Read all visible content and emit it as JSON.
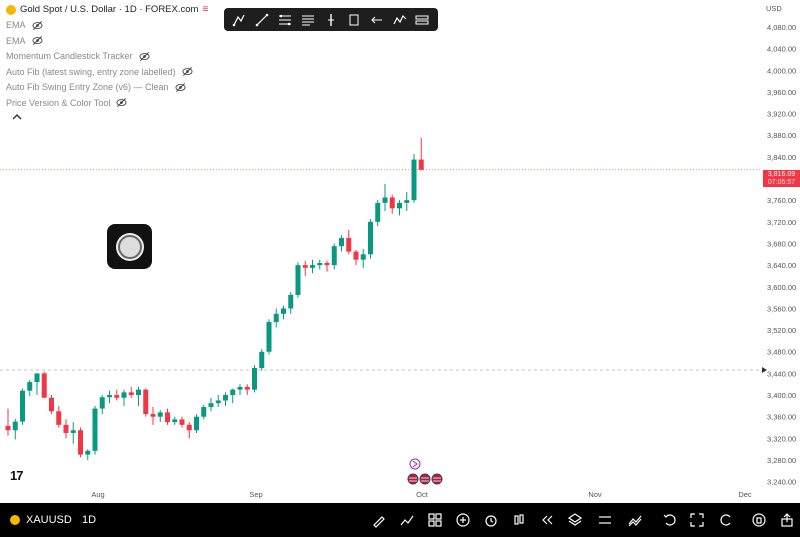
{
  "legend": {
    "title": "Gold Spot / U.S. Dollar · 1D · FOREX.com",
    "indicators": [
      "EMA",
      "EMA",
      "Momentum Candlestick Tracker",
      "Auto Fib (latest swing, entry zone labelled)",
      "Auto Fib Swing Entry Zone (v6) — Clean",
      "Price Version & Color Tool"
    ]
  },
  "currency": "USD",
  "price_tag": {
    "price": "3,816.09",
    "sub": "07:05:57"
  },
  "symbol": "XAUUSD",
  "timeframe": "1D",
  "logo_text": "17",
  "colors": {
    "up": "#089981",
    "down": "#f23645",
    "accent": "#e91e63"
  },
  "toolbar_icons": [
    "cursor-icon",
    "trendline-icon",
    "pitchfork-icon",
    "fib-icon",
    "long-position-icon",
    "measure-icon",
    "back-icon",
    "pattern-icon",
    "brush-icon"
  ],
  "bottom_icons": [
    "pencil-icon",
    "indicators-icon",
    "layout-icon",
    "add-icon",
    "alert-icon",
    "chart-type-icon",
    "replay-icon",
    "layers-icon",
    "settings-icon",
    "compare-icon",
    "undo-icon",
    "fullscreen-icon",
    "redo-icon",
    "lock-icon",
    "share-icon"
  ],
  "chart_data": {
    "type": "candlestick",
    "symbol": "XAUUSD",
    "timeframe": "1D",
    "y_ticks": [
      4080,
      4040,
      4000,
      3960,
      3920,
      3880,
      3840,
      3800,
      3760,
      3720,
      3680,
      3640,
      3600,
      3560,
      3520,
      3480,
      3440,
      3400,
      3360,
      3320,
      3280,
      3240
    ],
    "y_range": [
      3232,
      4115
    ],
    "x_labels": [
      "Aug",
      "Sep",
      "Oct",
      "Nov",
      "Dec"
    ],
    "last_price": 3816.09,
    "candles": [
      {
        "o": 3343,
        "h": 3375,
        "l": 3325,
        "c": 3335
      },
      {
        "o": 3335,
        "h": 3356,
        "l": 3318,
        "c": 3351
      },
      {
        "o": 3351,
        "h": 3412,
        "l": 3345,
        "c": 3408
      },
      {
        "o": 3408,
        "h": 3428,
        "l": 3398,
        "c": 3424
      },
      {
        "o": 3424,
        "h": 3440,
        "l": 3400,
        "c": 3440
      },
      {
        "o": 3440,
        "h": 3443,
        "l": 3400,
        "c": 3395
      },
      {
        "o": 3395,
        "h": 3400,
        "l": 3365,
        "c": 3370
      },
      {
        "o": 3370,
        "h": 3380,
        "l": 3340,
        "c": 3345
      },
      {
        "o": 3345,
        "h": 3355,
        "l": 3320,
        "c": 3330
      },
      {
        "o": 3330,
        "h": 3350,
        "l": 3310,
        "c": 3335
      },
      {
        "o": 3335,
        "h": 3340,
        "l": 3285,
        "c": 3290
      },
      {
        "o": 3290,
        "h": 3300,
        "l": 3280,
        "c": 3297
      },
      {
        "o": 3297,
        "h": 3380,
        "l": 3290,
        "c": 3375
      },
      {
        "o": 3375,
        "h": 3400,
        "l": 3365,
        "c": 3396
      },
      {
        "o": 3396,
        "h": 3408,
        "l": 3385,
        "c": 3400
      },
      {
        "o": 3400,
        "h": 3410,
        "l": 3390,
        "c": 3395
      },
      {
        "o": 3395,
        "h": 3410,
        "l": 3380,
        "c": 3405
      },
      {
        "o": 3405,
        "h": 3415,
        "l": 3395,
        "c": 3400
      },
      {
        "o": 3400,
        "h": 3415,
        "l": 3380,
        "c": 3410
      },
      {
        "o": 3410,
        "h": 3412,
        "l": 3360,
        "c": 3365
      },
      {
        "o": 3365,
        "h": 3378,
        "l": 3345,
        "c": 3360
      },
      {
        "o": 3360,
        "h": 3372,
        "l": 3350,
        "c": 3368
      },
      {
        "o": 3368,
        "h": 3375,
        "l": 3345,
        "c": 3350
      },
      {
        "o": 3350,
        "h": 3360,
        "l": 3345,
        "c": 3355
      },
      {
        "o": 3355,
        "h": 3360,
        "l": 3340,
        "c": 3345
      },
      {
        "o": 3345,
        "h": 3350,
        "l": 3320,
        "c": 3335
      },
      {
        "o": 3335,
        "h": 3365,
        "l": 3330,
        "c": 3360
      },
      {
        "o": 3360,
        "h": 3382,
        "l": 3355,
        "c": 3378
      },
      {
        "o": 3378,
        "h": 3395,
        "l": 3370,
        "c": 3385
      },
      {
        "o": 3385,
        "h": 3400,
        "l": 3378,
        "c": 3390
      },
      {
        "o": 3390,
        "h": 3405,
        "l": 3380,
        "c": 3400
      },
      {
        "o": 3400,
        "h": 3412,
        "l": 3385,
        "c": 3410
      },
      {
        "o": 3410,
        "h": 3420,
        "l": 3400,
        "c": 3415
      },
      {
        "o": 3415,
        "h": 3420,
        "l": 3400,
        "c": 3410
      },
      {
        "o": 3410,
        "h": 3455,
        "l": 3405,
        "c": 3450
      },
      {
        "o": 3450,
        "h": 3485,
        "l": 3445,
        "c": 3480
      },
      {
        "o": 3480,
        "h": 3540,
        "l": 3475,
        "c": 3535
      },
      {
        "o": 3535,
        "h": 3560,
        "l": 3525,
        "c": 3550
      },
      {
        "o": 3550,
        "h": 3565,
        "l": 3540,
        "c": 3560
      },
      {
        "o": 3560,
        "h": 3590,
        "l": 3550,
        "c": 3585
      },
      {
        "o": 3585,
        "h": 3645,
        "l": 3580,
        "c": 3640
      },
      {
        "o": 3640,
        "h": 3648,
        "l": 3620,
        "c": 3635
      },
      {
        "o": 3635,
        "h": 3650,
        "l": 3625,
        "c": 3640
      },
      {
        "o": 3640,
        "h": 3650,
        "l": 3632,
        "c": 3644
      },
      {
        "o": 3644,
        "h": 3648,
        "l": 3628,
        "c": 3640
      },
      {
        "o": 3640,
        "h": 3680,
        "l": 3632,
        "c": 3675
      },
      {
        "o": 3675,
        "h": 3695,
        "l": 3665,
        "c": 3690
      },
      {
        "o": 3690,
        "h": 3705,
        "l": 3660,
        "c": 3665
      },
      {
        "o": 3665,
        "h": 3668,
        "l": 3640,
        "c": 3650
      },
      {
        "o": 3650,
        "h": 3670,
        "l": 3635,
        "c": 3660
      },
      {
        "o": 3660,
        "h": 3725,
        "l": 3652,
        "c": 3720
      },
      {
        "o": 3720,
        "h": 3760,
        "l": 3712,
        "c": 3755
      },
      {
        "o": 3755,
        "h": 3790,
        "l": 3740,
        "c": 3765
      },
      {
        "o": 3765,
        "h": 3770,
        "l": 3735,
        "c": 3745
      },
      {
        "o": 3745,
        "h": 3760,
        "l": 3732,
        "c": 3755
      },
      {
        "o": 3755,
        "h": 3775,
        "l": 3740,
        "c": 3760
      },
      {
        "o": 3760,
        "h": 3845,
        "l": 3755,
        "c": 3835
      },
      {
        "o": 3835,
        "h": 3875,
        "l": 3815,
        "c": 3816
      }
    ]
  }
}
